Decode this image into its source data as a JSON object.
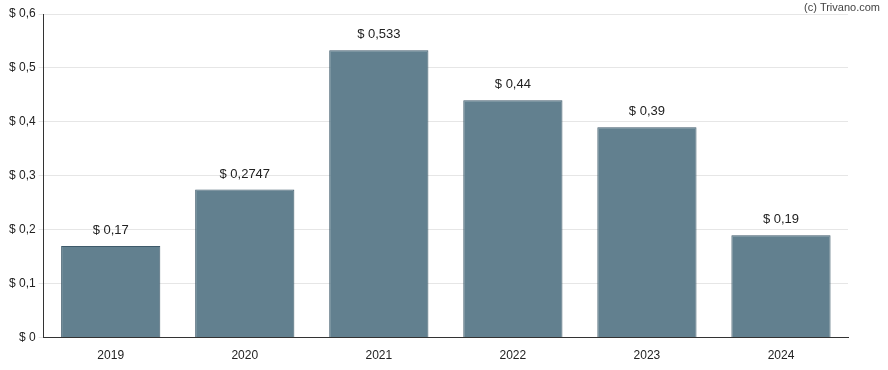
{
  "chart_data": {
    "type": "bar",
    "annotations": [
      "(c) Trivano.com"
    ],
    "categories": [
      "2019",
      "2020",
      "2021",
      "2022",
      "2023",
      "2024"
    ],
    "values": [
      0.17,
      0.2747,
      0.533,
      0.44,
      0.39,
      0.19
    ],
    "value_labels": [
      "$ 0,17",
      "$ 0,2747",
      "$ 0,533",
      "$ 0,44",
      "$ 0,39",
      "$ 0,19"
    ],
    "color": "#62808f",
    "ylim": [
      0,
      0.6
    ],
    "yticks": [
      {
        "value": 0,
        "label": "$ 0"
      },
      {
        "value": 0.1,
        "label": "$ 0,1"
      },
      {
        "value": 0.2,
        "label": "$ 0,2"
      },
      {
        "value": 0.3,
        "label": "$ 0,3"
      },
      {
        "value": 0.4,
        "label": "$ 0,4"
      },
      {
        "value": 0.5,
        "label": "$ 0,5"
      },
      {
        "value": 0.6,
        "label": "$ 0,6"
      }
    ],
    "grid": true,
    "data_labels": true
  }
}
